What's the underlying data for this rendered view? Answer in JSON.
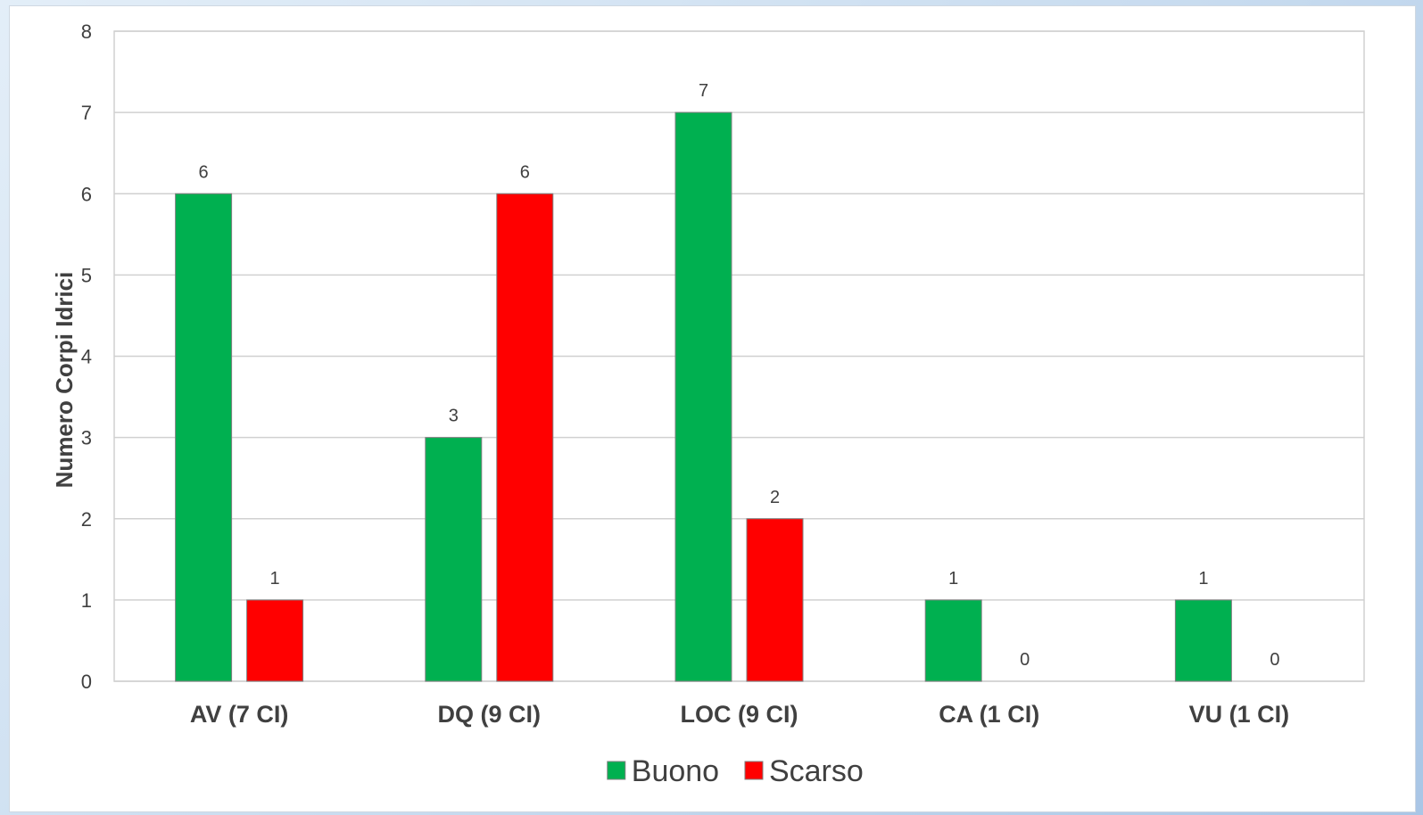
{
  "chart_data": {
    "type": "bar",
    "categories": [
      "AV (7 CI)",
      "DQ (9 CI)",
      "LOC (9 CI)",
      "CA (1 CI)",
      "VU (1 CI)"
    ],
    "series": [
      {
        "name": "Buono",
        "values": [
          6,
          3,
          7,
          1,
          1
        ],
        "color": "#00b050"
      },
      {
        "name": "Scarso",
        "values": [
          1,
          6,
          2,
          0,
          0
        ],
        "color": "#ff0000"
      }
    ],
    "title": "",
    "xlabel": "",
    "ylabel": "Numero Corpi Idrici",
    "ylim": [
      0,
      8
    ],
    "yticks": [
      0,
      1,
      2,
      3,
      4,
      5,
      6,
      7,
      8
    ],
    "grid": true,
    "data_labels": true,
    "legend_position": "bottom"
  }
}
